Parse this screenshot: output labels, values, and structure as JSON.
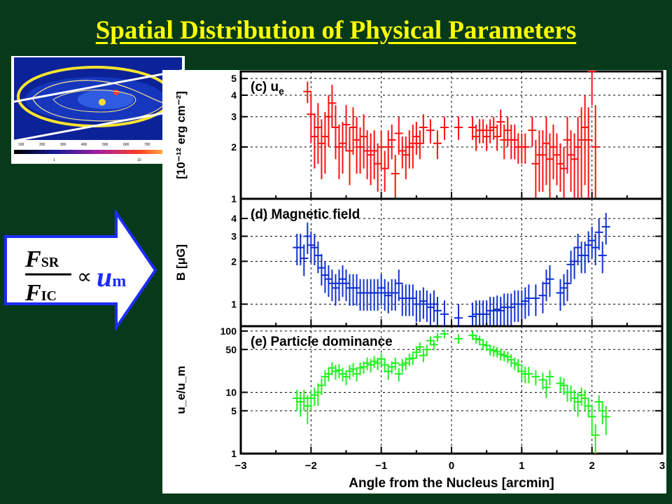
{
  "slide": {
    "title": "Spatial Distribution of Physical Parameters"
  },
  "formula": {
    "numerator_var": "F",
    "numerator_sub": "SR",
    "denominator_var": "F",
    "denominator_sub": "IC",
    "proportional": "∝",
    "rhs_var": "u",
    "rhs_sub": "m"
  },
  "colors": {
    "background": "#063a1a",
    "title": "#ffff00",
    "arrow_fill": "#ffffff",
    "arrow_border": "#1c2cff",
    "ue_series": "#ff1010",
    "b_series": "#1030d0",
    "ratio_series": "#22f022"
  },
  "thumbnail": {
    "scale_ticks": [
      "100",
      "200",
      "300",
      "400",
      "500",
      "600",
      "700"
    ],
    "scale_ticks2": [
      "1",
      "10"
    ]
  },
  "chart_data": [
    {
      "type": "scatter",
      "panel_label": "(c) u",
      "panel_label_sub": "e",
      "ylabel": "[10⁻¹² erg cm⁻²]",
      "ylim": [
        1,
        5.5
      ],
      "yscale": "log",
      "yticks": [
        "1",
        "2",
        "3",
        "4",
        "5"
      ],
      "xlim": [
        -3,
        3
      ],
      "grid": true,
      "series": [
        {
          "x": [
            -2.05,
            -2.0,
            -1.95,
            -1.9,
            -1.85,
            -1.8,
            -1.75,
            -1.7,
            -1.65,
            -1.6,
            -1.55,
            -1.5,
            -1.45,
            -1.4,
            -1.35,
            -1.3,
            -1.25,
            -1.2,
            -1.15,
            -1.1,
            -1.05,
            -1.0,
            -0.95,
            -0.9,
            -0.85,
            -0.8,
            -0.75,
            -0.7,
            -0.65,
            -0.6,
            -0.55,
            -0.5,
            -0.45,
            -0.4,
            -0.3,
            -0.2,
            -0.1,
            0.1,
            0.3,
            0.35,
            0.4,
            0.45,
            0.5,
            0.55,
            0.6,
            0.65,
            0.7,
            0.75,
            0.8,
            0.85,
            0.9,
            0.95,
            1.0,
            1.05,
            1.15,
            1.2,
            1.25,
            1.3,
            1.35,
            1.4,
            1.45,
            1.5,
            1.55,
            1.6,
            1.65,
            1.7,
            1.75,
            1.8,
            1.85,
            1.9,
            1.95,
            2.0,
            2.05
          ],
          "y": [
            4.2,
            3.1,
            2.3,
            2.6,
            2.1,
            2.3,
            3.0,
            3.6,
            2.6,
            2.0,
            2.1,
            2.7,
            1.9,
            2.6,
            2.2,
            2.0,
            2.3,
            1.9,
            1.8,
            1.9,
            1.6,
            2.0,
            1.5,
            2.0,
            2.2,
            1.4,
            2.4,
            1.9,
            1.8,
            2.0,
            2.1,
            2.3,
            2.1,
            2.6,
            2.5,
            2.1,
            2.6,
            2.6,
            2.6,
            2.3,
            2.5,
            2.5,
            2.3,
            2.5,
            2.6,
            2.3,
            2.8,
            2.2,
            2.5,
            2.2,
            2.2,
            2.0,
            2.0,
            2.0,
            2.5,
            1.6,
            1.8,
            1.8,
            2.1,
            1.7,
            2.0,
            1.8,
            1.6,
            1.5,
            2.2,
            1.8,
            1.7,
            2.0,
            2.2,
            2.6,
            2.2,
            5.5,
            2.0
          ],
          "yerr": [
            0.6,
            1.0,
            0.8,
            1.0,
            0.8,
            0.9,
            1.0,
            1.0,
            0.9,
            0.7,
            0.7,
            0.8,
            0.7,
            0.8,
            0.8,
            0.6,
            0.8,
            0.6,
            0.6,
            0.6,
            0.5,
            0.5,
            0.4,
            0.5,
            0.5,
            0.4,
            0.6,
            0.4,
            0.5,
            0.5,
            0.6,
            0.5,
            0.4,
            0.5,
            0.4,
            0.4,
            0.4,
            0.4,
            0.4,
            0.4,
            0.4,
            0.4,
            0.4,
            0.4,
            0.4,
            0.4,
            0.5,
            0.5,
            0.5,
            0.5,
            0.5,
            0.4,
            0.4,
            0.4,
            0.5,
            0.6,
            0.7,
            0.7,
            0.9,
            0.7,
            0.7,
            0.6,
            0.5,
            0.5,
            0.8,
            0.7,
            0.7,
            1.0,
            1.2,
            1.4,
            1.2,
            2.0,
            1.5
          ]
        }
      ]
    },
    {
      "type": "scatter",
      "panel_label": "(d) Magnetic field",
      "ylabel": "B [μG]",
      "ylim": [
        0.7,
        5.5
      ],
      "yscale": "log",
      "yticks": [
        "1",
        "2",
        "3",
        "4"
      ],
      "xlim": [
        -3,
        3
      ],
      "grid": true,
      "series": [
        {
          "x": [
            -2.2,
            -2.15,
            -2.1,
            -2.05,
            -2.0,
            -1.95,
            -1.9,
            -1.85,
            -1.8,
            -1.75,
            -1.7,
            -1.65,
            -1.6,
            -1.55,
            -1.5,
            -1.45,
            -1.4,
            -1.35,
            -1.3,
            -1.25,
            -1.2,
            -1.15,
            -1.1,
            -1.05,
            -1.0,
            -0.95,
            -0.9,
            -0.85,
            -0.8,
            -0.75,
            -0.7,
            -0.65,
            -0.6,
            -0.55,
            -0.5,
            -0.45,
            -0.4,
            -0.35,
            -0.3,
            -0.25,
            -0.2,
            -0.1,
            0.1,
            0.3,
            0.35,
            0.4,
            0.45,
            0.5,
            0.55,
            0.6,
            0.65,
            0.7,
            0.75,
            0.8,
            0.85,
            0.9,
            0.95,
            1.0,
            1.05,
            1.1,
            1.2,
            1.3,
            1.35,
            1.4,
            1.55,
            1.6,
            1.65,
            1.7,
            1.75,
            1.8,
            1.85,
            1.9,
            1.95,
            2.0,
            2.05,
            2.1,
            2.15,
            2.2
          ],
          "y": [
            2.5,
            2.5,
            2.1,
            3.0,
            2.6,
            2.5,
            2.2,
            1.8,
            1.6,
            1.5,
            1.4,
            1.3,
            1.4,
            1.5,
            1.4,
            1.3,
            1.3,
            1.3,
            1.2,
            1.2,
            1.2,
            1.2,
            1.2,
            1.2,
            1.3,
            1.2,
            1.15,
            1.2,
            1.2,
            1.4,
            1.1,
            1.1,
            1.1,
            1.1,
            1.0,
            1.0,
            1.05,
            1.0,
            0.95,
            1.0,
            0.9,
            0.85,
            0.8,
            0.82,
            0.85,
            0.85,
            0.85,
            0.85,
            0.9,
            0.9,
            0.92,
            0.9,
            0.95,
            0.95,
            0.95,
            1.0,
            1.0,
            1.0,
            1.05,
            1.1,
            1.1,
            1.15,
            1.4,
            1.5,
            1.2,
            1.3,
            1.4,
            1.9,
            2.0,
            2.5,
            2.2,
            2.2,
            2.6,
            2.8,
            2.5,
            3.2,
            2.2,
            3.5
          ]
        }
      ]
    },
    {
      "type": "scatter",
      "panel_label": "(e) Particle dominance",
      "ylabel": "u_e/u_m",
      "ylim": [
        1,
        120
      ],
      "yscale": "log",
      "yticks": [
        "1",
        "5",
        "10",
        "50",
        "100"
      ],
      "xlim": [
        -3,
        3
      ],
      "xticks": [
        "-3",
        "-2",
        "-1",
        "0",
        "1",
        "2",
        "3"
      ],
      "xlabel": "Angle from the Nucleus [arcmin]",
      "grid": true,
      "series": [
        {
          "x": [
            -2.2,
            -2.15,
            -2.1,
            -2.05,
            -2.0,
            -1.95,
            -1.9,
            -1.85,
            -1.8,
            -1.75,
            -1.7,
            -1.65,
            -1.6,
            -1.55,
            -1.5,
            -1.45,
            -1.4,
            -1.35,
            -1.3,
            -1.25,
            -1.2,
            -1.15,
            -1.1,
            -1.05,
            -1.0,
            -0.95,
            -0.9,
            -0.85,
            -0.8,
            -0.75,
            -0.7,
            -0.65,
            -0.6,
            -0.55,
            -0.5,
            -0.45,
            -0.4,
            -0.35,
            -0.3,
            -0.25,
            -0.2,
            -0.1,
            0.1,
            0.3,
            0.35,
            0.4,
            0.45,
            0.5,
            0.55,
            0.6,
            0.65,
            0.7,
            0.75,
            0.8,
            0.85,
            0.9,
            0.95,
            1.0,
            1.05,
            1.1,
            1.2,
            1.3,
            1.35,
            1.4,
            1.55,
            1.6,
            1.65,
            1.7,
            1.75,
            1.8,
            1.85,
            1.9,
            1.95,
            2.0,
            2.05,
            2.1,
            2.15,
            2.2
          ],
          "y": [
            8,
            7,
            8,
            6,
            8,
            9,
            10,
            13,
            18,
            20,
            25,
            22,
            23,
            20,
            18,
            22,
            24,
            20,
            25,
            26,
            30,
            28,
            32,
            30,
            35,
            28,
            22,
            26,
            30,
            20,
            28,
            30,
            35,
            36,
            45,
            55,
            40,
            50,
            70,
            60,
            80,
            90,
            75,
            85,
            75,
            72,
            60,
            58,
            50,
            48,
            46,
            42,
            40,
            38,
            34,
            30,
            28,
            22,
            20,
            20,
            18,
            16,
            12,
            18,
            14,
            13,
            10,
            10,
            8,
            7,
            9,
            8,
            6,
            4,
            2,
            7,
            5,
            4
          ],
          "yerr": [
            3,
            3,
            3,
            3,
            3,
            3,
            4,
            4,
            5,
            5,
            6,
            6,
            6,
            5,
            5,
            6,
            6,
            5,
            6,
            6,
            7,
            7,
            7,
            7,
            8,
            7,
            6,
            6,
            7,
            5,
            7,
            7,
            8,
            8,
            9,
            10,
            9,
            10,
            12,
            11,
            13,
            14,
            13,
            14,
            13,
            12,
            11,
            11,
            10,
            10,
            9,
            9,
            8,
            8,
            8,
            7,
            7,
            6,
            6,
            6,
            5,
            5,
            4,
            5,
            4,
            4,
            3,
            3,
            3,
            3,
            3,
            3,
            2,
            2,
            1,
            2,
            2,
            2
          ]
        }
      ]
    }
  ]
}
